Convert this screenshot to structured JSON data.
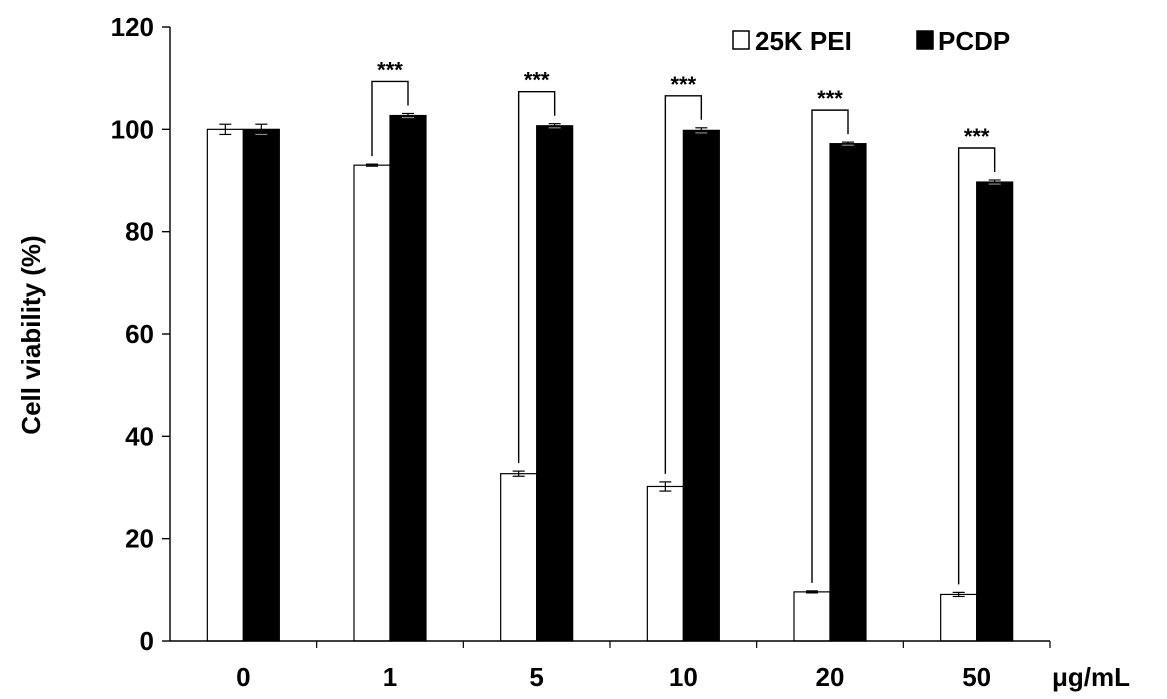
{
  "chart_data": {
    "type": "bar",
    "title": "",
    "xlabel": "",
    "x_unit_label": "μg/mL",
    "ylabel": "Cell viability (%)",
    "ylim": [
      0,
      120
    ],
    "yticks": [
      0,
      20,
      40,
      60,
      80,
      100,
      120
    ],
    "categories": [
      "0",
      "1",
      "5",
      "10",
      "20",
      "50"
    ],
    "series": [
      {
        "name": "25K PEI",
        "fill": "#ffffff",
        "values": [
          100.0,
          93.0,
          32.7,
          30.2,
          9.6,
          9.1
        ],
        "errors": [
          1.0,
          0.2,
          0.5,
          0.9,
          0.2,
          0.4
        ]
      },
      {
        "name": "PCDP",
        "fill": "#000000",
        "values": [
          100.0,
          102.7,
          100.7,
          99.8,
          97.2,
          89.7
        ],
        "errors": [
          1.0,
          0.4,
          0.4,
          0.5,
          0.3,
          0.4
        ]
      }
    ],
    "significance": [
      {
        "category": "1",
        "label": "***"
      },
      {
        "category": "5",
        "label": "***"
      },
      {
        "category": "10",
        "label": "***"
      },
      {
        "category": "20",
        "label": "***"
      },
      {
        "category": "50",
        "label": "***"
      }
    ],
    "legend_position": "top-right",
    "grid": false
  }
}
